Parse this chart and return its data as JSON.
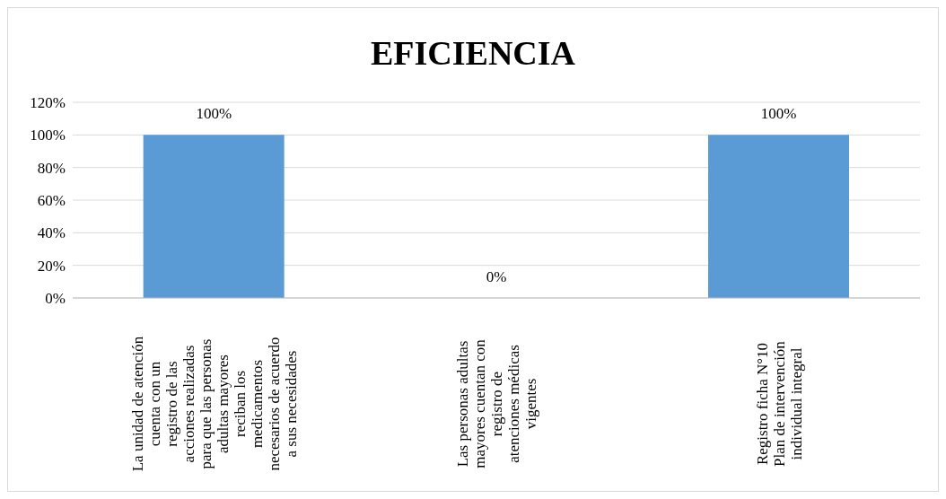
{
  "chart_data": {
    "type": "bar",
    "title": "EFICIENCIA",
    "categories": [
      "La unidad de atención cuenta con un registro de las acciones realizadas para que las personas adultas mayores reciban los medicamentos necesarios de acuerdo a sus necesidades",
      "Las personas adultas mayores cuentan con registro de atenciones médicas vigentes",
      "Registro ficha N°10 Plan de intervención individual integral"
    ],
    "values": [
      100,
      0,
      100
    ],
    "value_labels": [
      "100%",
      "0%",
      "100%"
    ],
    "color": "#5b9bd5",
    "ylim": [
      0,
      120
    ],
    "yticks": [
      {
        "value": 0,
        "label": "0%"
      },
      {
        "value": 20,
        "label": "20%"
      },
      {
        "value": 40,
        "label": "40%"
      },
      {
        "value": 60,
        "label": "60%"
      },
      {
        "value": 80,
        "label": "80%"
      },
      {
        "value": 100,
        "label": "100%"
      },
      {
        "value": 120,
        "label": "120%"
      }
    ],
    "grid": "y",
    "legend": false
  }
}
